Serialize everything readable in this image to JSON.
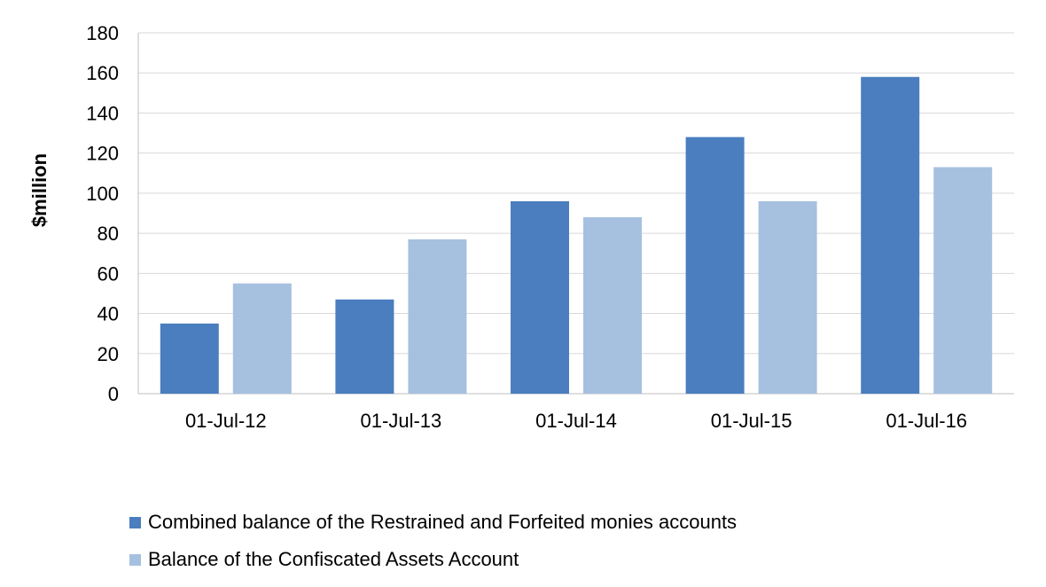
{
  "chart_data": {
    "type": "bar",
    "title": "",
    "xlabel": "",
    "ylabel": "$million",
    "ylim": [
      0,
      180
    ],
    "yticks": [
      0,
      20,
      40,
      60,
      80,
      100,
      120,
      140,
      160,
      180
    ],
    "grid": true,
    "legend_position": "bottom-left",
    "categories": [
      "01-Jul-12",
      "01-Jul-13",
      "01-Jul-14",
      "01-Jul-15",
      "01-Jul-16"
    ],
    "series": [
      {
        "name": "Combined balance of the Restrained and Forfeited monies accounts",
        "color": "#4A7EBF",
        "values": [
          35,
          47,
          96,
          128,
          158
        ]
      },
      {
        "name": "Balance of the Confiscated Assets Account",
        "color": "#A6C0E0",
        "values": [
          55,
          77,
          88,
          96,
          113
        ]
      }
    ]
  }
}
